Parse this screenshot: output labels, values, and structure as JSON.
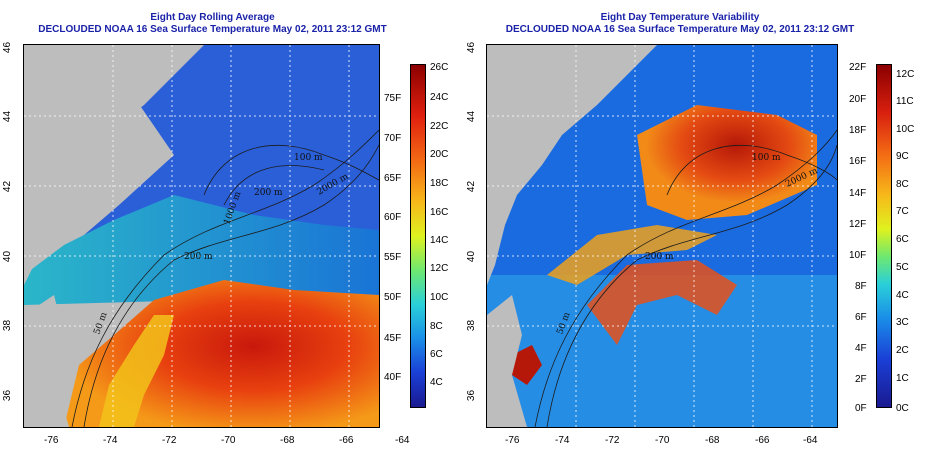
{
  "left": {
    "title": "Eight Day Rolling Average",
    "subtitle": "DECLOUDED NOAA 16 Sea Surface Temperature May 02, 2011 23:12 GMT",
    "contour_labels": [
      "100 m",
      "200 m",
      "1000 m",
      "2000 m",
      "200 m",
      "50 m"
    ],
    "colorbar_f": [
      "75F",
      "70F",
      "65F",
      "60F",
      "55F",
      "50F",
      "45F",
      "40F"
    ],
    "colorbar_c": [
      "26C",
      "24C",
      "22C",
      "20C",
      "18C",
      "16C",
      "14C",
      "12C",
      "10C",
      "8C",
      "6C",
      "4C"
    ]
  },
  "right": {
    "title": "Eight Day Temperature Variability",
    "subtitle": "DECLOUDED NOAA 16 Sea Surface Temperature May 02, 2011 23:12 GMT",
    "contour_labels": [
      "100 m",
      "2000 m",
      "200 m",
      "50 m"
    ],
    "colorbar_f": [
      "22F",
      "20F",
      "18F",
      "16F",
      "14F",
      "12F",
      "10F",
      "8F",
      "6F",
      "4F",
      "2F",
      "0F"
    ],
    "colorbar_c": [
      "12C",
      "11C",
      "10C",
      "9C",
      "8C",
      "7C",
      "6C",
      "5C",
      "4C",
      "3C",
      "2C",
      "1C",
      "0C"
    ]
  },
  "axes": {
    "x_ticks": [
      "-76",
      "-74",
      "-72",
      "-70",
      "-68",
      "-66",
      "-64"
    ],
    "y_ticks": [
      "46",
      "44",
      "42",
      "40",
      "38",
      "36"
    ]
  },
  "colors": {
    "title": "#1a22a8",
    "land": "#bdbdbd"
  }
}
